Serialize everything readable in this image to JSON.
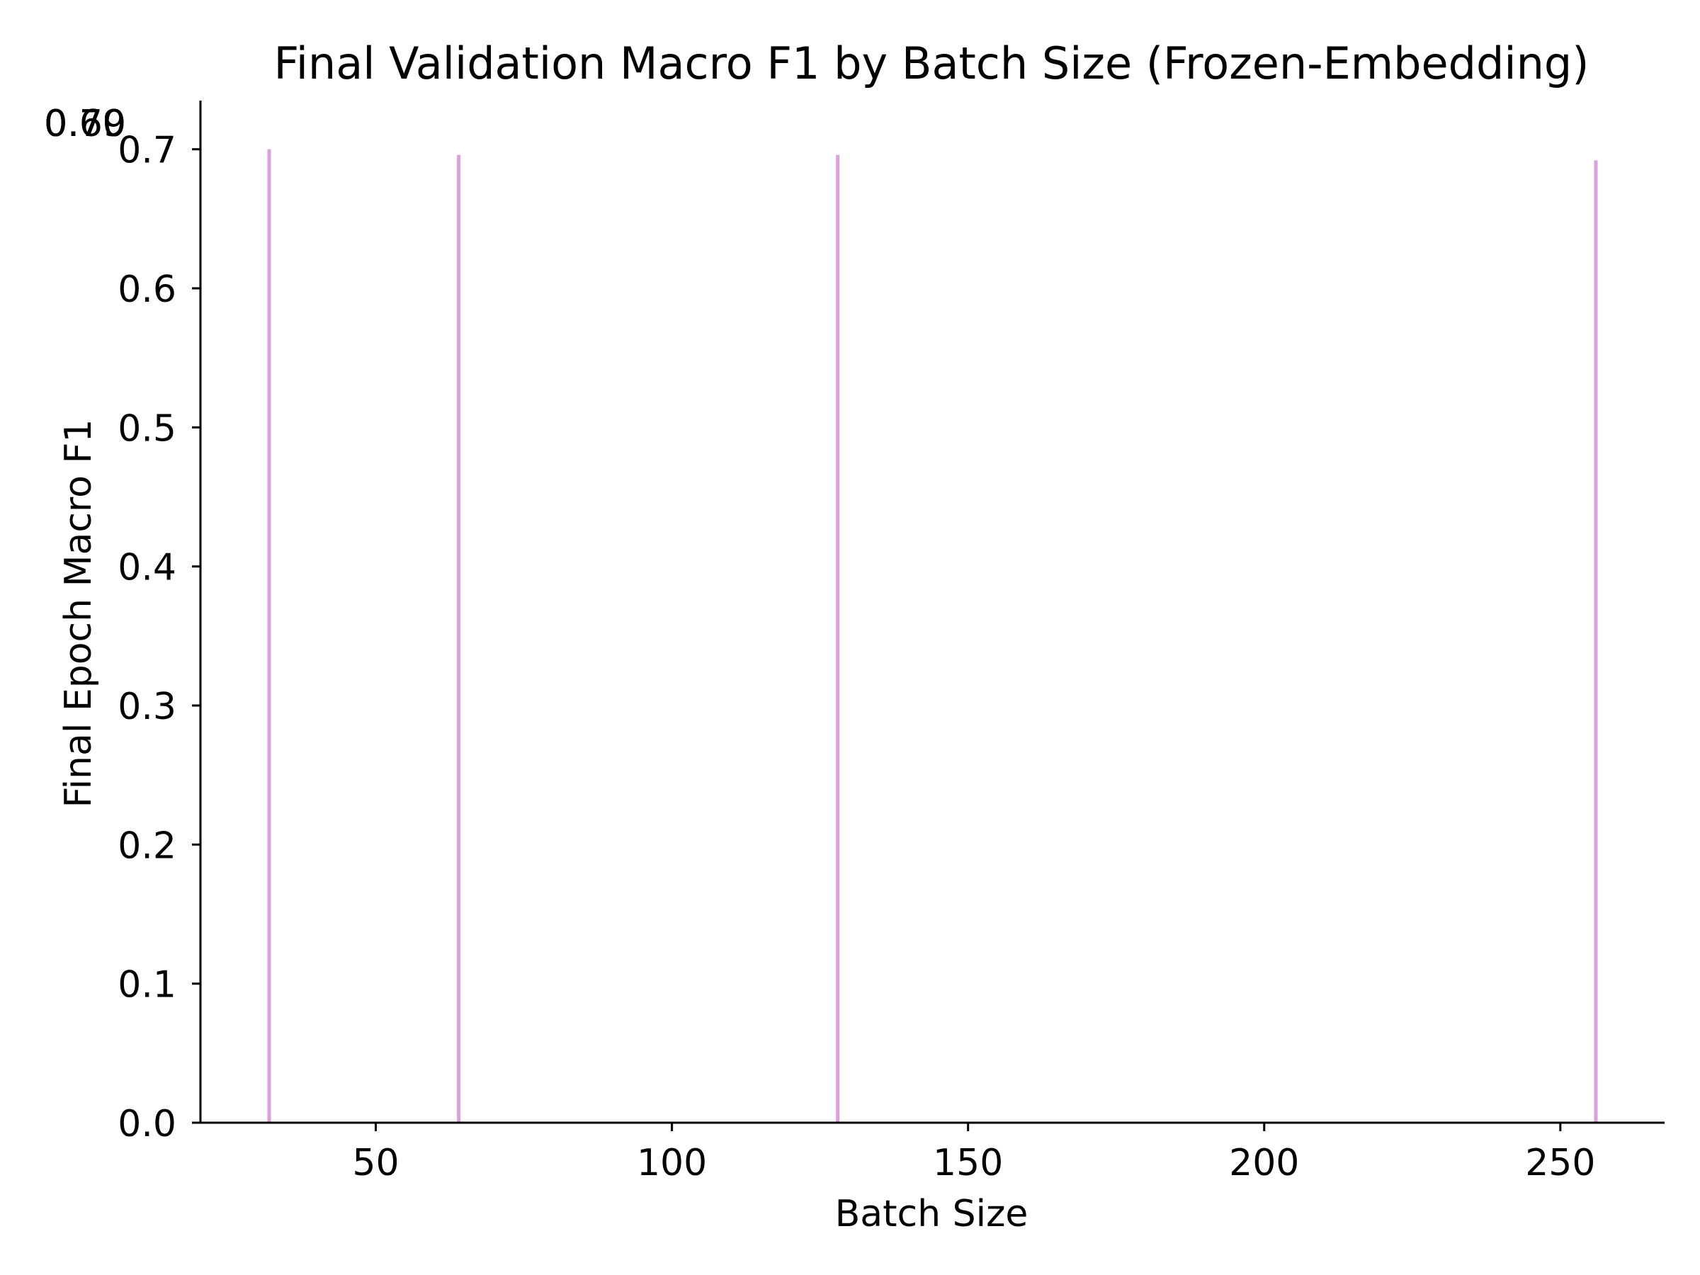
{
  "chart_data": {
    "type": "bar",
    "title": "Final Validation Macro F1 by Batch Size (Frozen-Embedding)",
    "xlabel": "Batch Size",
    "ylabel": "Final Epoch Macro F1",
    "x": [
      32,
      64,
      128,
      256
    ],
    "values": [
      0.7,
      0.696,
      0.696,
      0.692
    ],
    "data_labels": [
      "0.70",
      "0.70",
      "0.70",
      "0.69"
    ],
    "xlim": [
      20.4,
      267.6
    ],
    "ylim": [
      0,
      0.735
    ],
    "xticks": [
      50,
      100,
      150,
      200,
      250
    ],
    "yticks": [
      0.0,
      0.1,
      0.2,
      0.3,
      0.4,
      0.5,
      0.6,
      0.7
    ],
    "bar_color": "#dda0dd",
    "grid": false,
    "spines": "left-bottom"
  }
}
